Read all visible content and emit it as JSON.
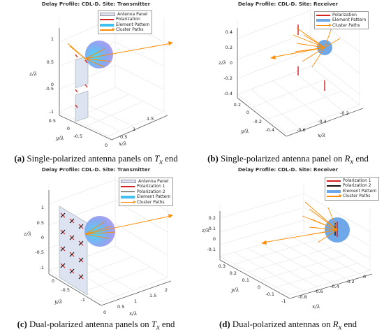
{
  "panels": [
    {
      "id": "a",
      "title": "Delay Profile: CDL-D. Site: Transmitter",
      "legend": [
        "Antenna Panel",
        "Polarization",
        "Element Pattern",
        "Cluster Paths"
      ],
      "axes": {
        "z_label": "z/λ",
        "y_label": "y/λ",
        "x_label": "x/λ",
        "z_ticks": [
          "1",
          "0.5",
          "0",
          "-0.5",
          "-1"
        ],
        "y_ticks": [
          "0.5",
          "0",
          "-0.5"
        ],
        "x_ticks": [
          "0",
          "0.5",
          "1",
          "1.5"
        ]
      },
      "caption": {
        "tag": "(a)",
        "pre": " Single-polarized antenna panels on ",
        "sym": "T",
        "sub": "x",
        "post": " end"
      }
    },
    {
      "id": "b",
      "title": "Delay Profile: CDL-D. Site: Receiver",
      "legend": [
        "Polarization",
        "Element Pattern",
        "Cluster Paths"
      ],
      "axes": {
        "z_label": "z/λ",
        "y_label": "y/λ",
        "x_label": "x/λ",
        "z_ticks": [
          "0.4",
          "0.2",
          "0",
          "-0.2",
          "-0.4"
        ],
        "y_ticks": [
          "0.2",
          "0",
          "-0.2",
          "-0.4"
        ],
        "x_ticks": [
          "-0.6",
          "-0.4",
          "-0.2"
        ]
      },
      "caption": {
        "tag": "(b)",
        "pre": " Single-polarized antenna panel on ",
        "sym": "R",
        "sub": "x",
        "post": " end"
      }
    },
    {
      "id": "c",
      "title": "Delay Profile: CDL-D. Site: Transmitter",
      "legend": [
        "Antenna Panel",
        "Polarization 1",
        "Polarization 2",
        "Element Pattern",
        "Cluster Paths"
      ],
      "axes": {
        "z_label": "z/λ",
        "y_label": "y/λ",
        "x_label": "x/λ",
        "z_ticks": [
          "1",
          "0.5",
          "0",
          "-0.5",
          "-1"
        ],
        "y_ticks": [
          "0",
          "-0.5",
          "-1"
        ],
        "x_ticks": [
          "0",
          "0.5",
          "1",
          "1.5",
          "2"
        ]
      },
      "caption": {
        "tag": "(c)",
        "pre": " Dual-polarized antenna panels on ",
        "sym": "T",
        "sub": "x",
        "post": " end"
      }
    },
    {
      "id": "d",
      "title": "Delay Profile: CDL-D. Site: Receiver",
      "legend": [
        "Polarization 1",
        "Polarization 2",
        "Element Pattern",
        "Cluster Paths"
      ],
      "axes": {
        "z_label": "z/λ",
        "y_label": "y/λ",
        "x_label": "x/λ",
        "z_ticks": [
          "0.2",
          "0.1",
          "0",
          "-0.1"
        ],
        "y_ticks": [
          "0.3",
          "0.2",
          "0.1",
          "0",
          "-0.1"
        ],
        "x_ticks": [
          "-1",
          "-0.8",
          "-0.6",
          "-0.4",
          "-0.2",
          "0"
        ]
      },
      "caption": {
        "tag": "(d)",
        "pre": " Dual-polarized antennas on ",
        "sym": "R",
        "sub": "x",
        "post": " end"
      }
    }
  ],
  "colors": {
    "panel_fill": "#dde3f0",
    "polarization_1": "#d62020",
    "polarization_2": "#111111",
    "element_pattern": "#6fa8e8",
    "cluster_paths": "#ff8c00"
  }
}
